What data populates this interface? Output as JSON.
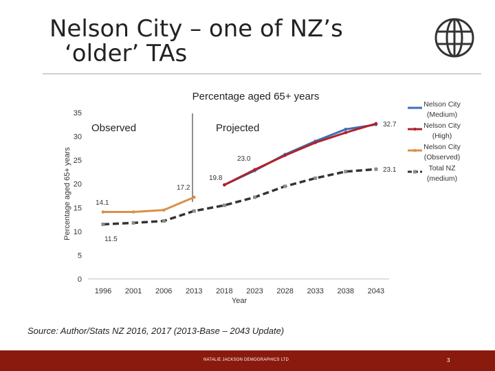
{
  "slide": {
    "title_line1": "Nelson City – one of NZ’s",
    "title_line2": "‘older’ TAs",
    "source": "Source: Author/Stats NZ 2016, 2017 (2013-Base – 2043 Update)",
    "footer": "NATALIE JACKSON DEMOGRAPHICS LTD",
    "page_number": "3",
    "logo_icon": "globe-icon"
  },
  "colors": {
    "medium": "#3b6fb6",
    "high": "#b0222a",
    "observed": "#d98f4a",
    "total": "#333333",
    "footer": "#8b1a0e"
  },
  "chart_data": {
    "type": "line",
    "title": "Percentage aged 65+ years",
    "xlabel": "Year",
    "ylabel": "Percentage aged 65+ years",
    "ylim": [
      0,
      35
    ],
    "yticks": [
      0,
      5,
      10,
      15,
      20,
      25,
      30,
      35
    ],
    "categories": [
      "1996",
      "2001",
      "2006",
      "2013",
      "2018",
      "2023",
      "2028",
      "2033",
      "2038",
      "2043"
    ],
    "annotations": {
      "observed_label": "Observed",
      "projected_label": "Projected"
    },
    "data_labels": [
      "14.1",
      "11.5",
      "17.2",
      "19.8",
      "23.0",
      "32.7",
      "23.1"
    ],
    "legend_position": "right",
    "series": [
      {
        "name": "Nelson City (Medium)",
        "color_key": "medium",
        "values": [
          null,
          null,
          null,
          null,
          19.8,
          22.8,
          26.2,
          29.0,
          31.5,
          32.5
        ]
      },
      {
        "name": "Nelson City (High)",
        "color_key": "high",
        "values": [
          null,
          null,
          null,
          null,
          19.8,
          23.0,
          26.0,
          28.7,
          30.8,
          32.7
        ]
      },
      {
        "name": "Nelson City (Observed)",
        "color_key": "observed",
        "values": [
          14.1,
          14.1,
          14.5,
          17.2,
          null,
          null,
          null,
          null,
          null,
          null
        ]
      },
      {
        "name": "Total NZ (medium)",
        "color_key": "total",
        "values": [
          11.5,
          11.8,
          12.2,
          14.3,
          15.5,
          17.2,
          19.5,
          21.2,
          22.6,
          23.1
        ]
      }
    ]
  }
}
